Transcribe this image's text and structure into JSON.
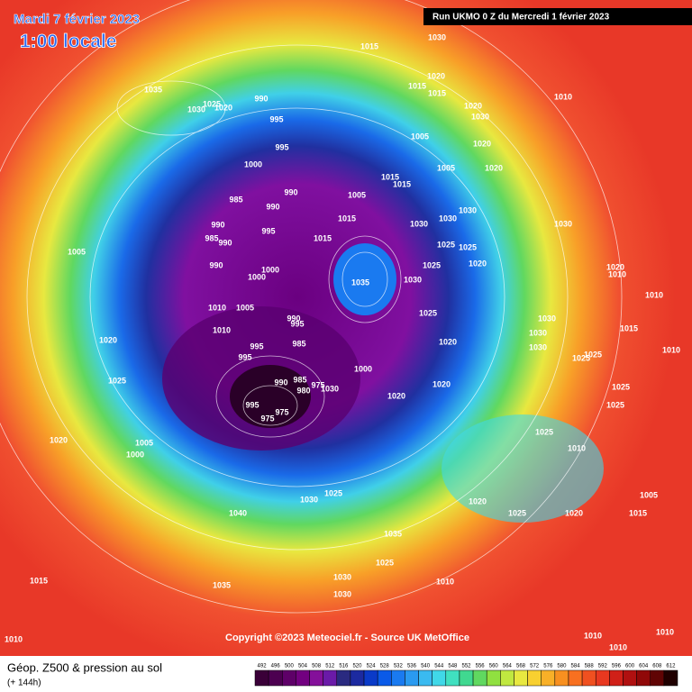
{
  "header": {
    "date": "Mardi 7 février 2023",
    "local_time": "1:00 locale",
    "run": "Run UKMO 0 Z du Mercredi 1 février 2023"
  },
  "map": {
    "isobar_labels": [
      1015,
      1030,
      1035,
      1025,
      1030,
      1020,
      990,
      995,
      1020,
      1015,
      1015,
      1010,
      1020,
      1030,
      1020,
      1005,
      995,
      1000,
      1005,
      1020,
      990,
      985,
      990,
      1005,
      1015,
      1015,
      1030,
      1030,
      990,
      995,
      985,
      990,
      1015,
      1030,
      1030,
      1025,
      1025,
      1015,
      990,
      1000,
      1000,
      1035,
      1030,
      1025,
      1020,
      1020,
      1010,
      1010,
      1005,
      1005,
      1010,
      990,
      995,
      1025,
      1030,
      1020,
      1010,
      985,
      995,
      995,
      1030,
      1015,
      1020,
      1030,
      1025,
      1010,
      1000,
      1025,
      1025,
      990,
      985,
      975,
      980,
      1030,
      1020,
      1020,
      1025,
      1025,
      995,
      975,
      975,
      1025,
      1020,
      1005,
      1000,
      1010,
      1025,
      1030,
      1020,
      1025,
      1020,
      1015,
      1005,
      1040,
      1035,
      1025,
      1030,
      1010,
      1030,
      1015,
      1035,
      1010,
      1010,
      1010,
      1010
    ],
    "copyright": "Copyright ©2023 Meteociel.fr - Source UK MetOffice"
  },
  "legend": {
    "title": "Géop. Z500 & pression au sol",
    "lead": "(+ 144h)",
    "scale": {
      "values": [
        492,
        496,
        500,
        504,
        508,
        512,
        516,
        520,
        524,
        528,
        532,
        536,
        540,
        544,
        548,
        552,
        556,
        560,
        564,
        568,
        572,
        576,
        580,
        584,
        588,
        592,
        596,
        600,
        604,
        608,
        612
      ],
      "colors": [
        "#3a0038",
        "#4c0050",
        "#5e0068",
        "#720080",
        "#84109a",
        "#6a1aa8",
        "#2a2a80",
        "#1c2aa0",
        "#0a3ac8",
        "#0a5ae8",
        "#1a7af0",
        "#2a9af0",
        "#3abaf0",
        "#40d8e8",
        "#40e0c0",
        "#40d890",
        "#60d860",
        "#90e040",
        "#c0e840",
        "#e8e840",
        "#f8d030",
        "#f8b028",
        "#f89020",
        "#f87020",
        "#f05020",
        "#e83820",
        "#d02018",
        "#b01010",
        "#900808",
        "#600404",
        "#200000"
      ]
    }
  }
}
